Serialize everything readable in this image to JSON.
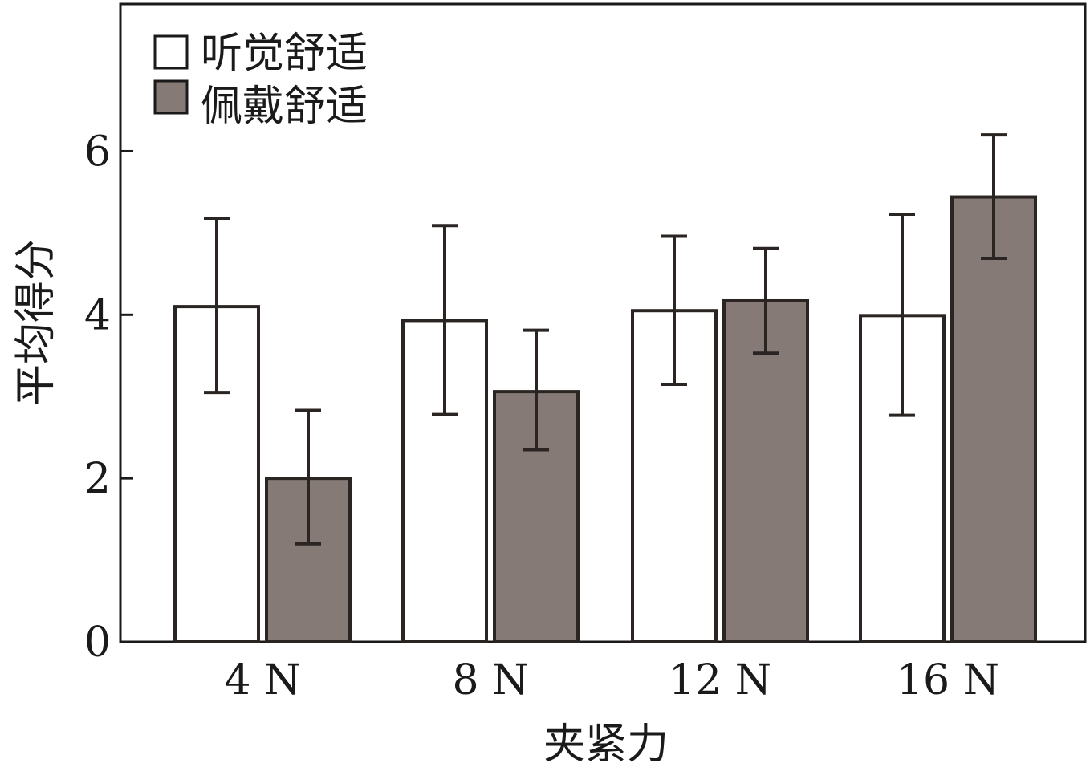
{
  "chart_data": {
    "type": "bar",
    "categories": [
      "4 N",
      "8 N",
      "12 N",
      "16 N"
    ],
    "series": [
      {
        "name": "听觉舒适",
        "values": [
          4.1,
          3.93,
          4.05,
          3.99
        ],
        "error_low": [
          3.05,
          2.78,
          3.15,
          2.77
        ],
        "error_high": [
          5.18,
          5.09,
          4.96,
          5.23
        ],
        "color": "#ffffff"
      },
      {
        "name": "佩戴舒适",
        "values": [
          2.0,
          3.06,
          4.17,
          5.44
        ],
        "error_low": [
          1.2,
          2.35,
          3.53,
          4.69
        ],
        "error_high": [
          2.83,
          3.81,
          4.81,
          6.2
        ],
        "color": "#857a76"
      }
    ],
    "xlabel": "夹紧力",
    "ylabel": "平均得分",
    "ylim": [
      0,
      7.8
    ],
    "yticks": [
      0,
      2,
      4,
      6
    ],
    "legend_position": "top-left",
    "grid": false
  }
}
